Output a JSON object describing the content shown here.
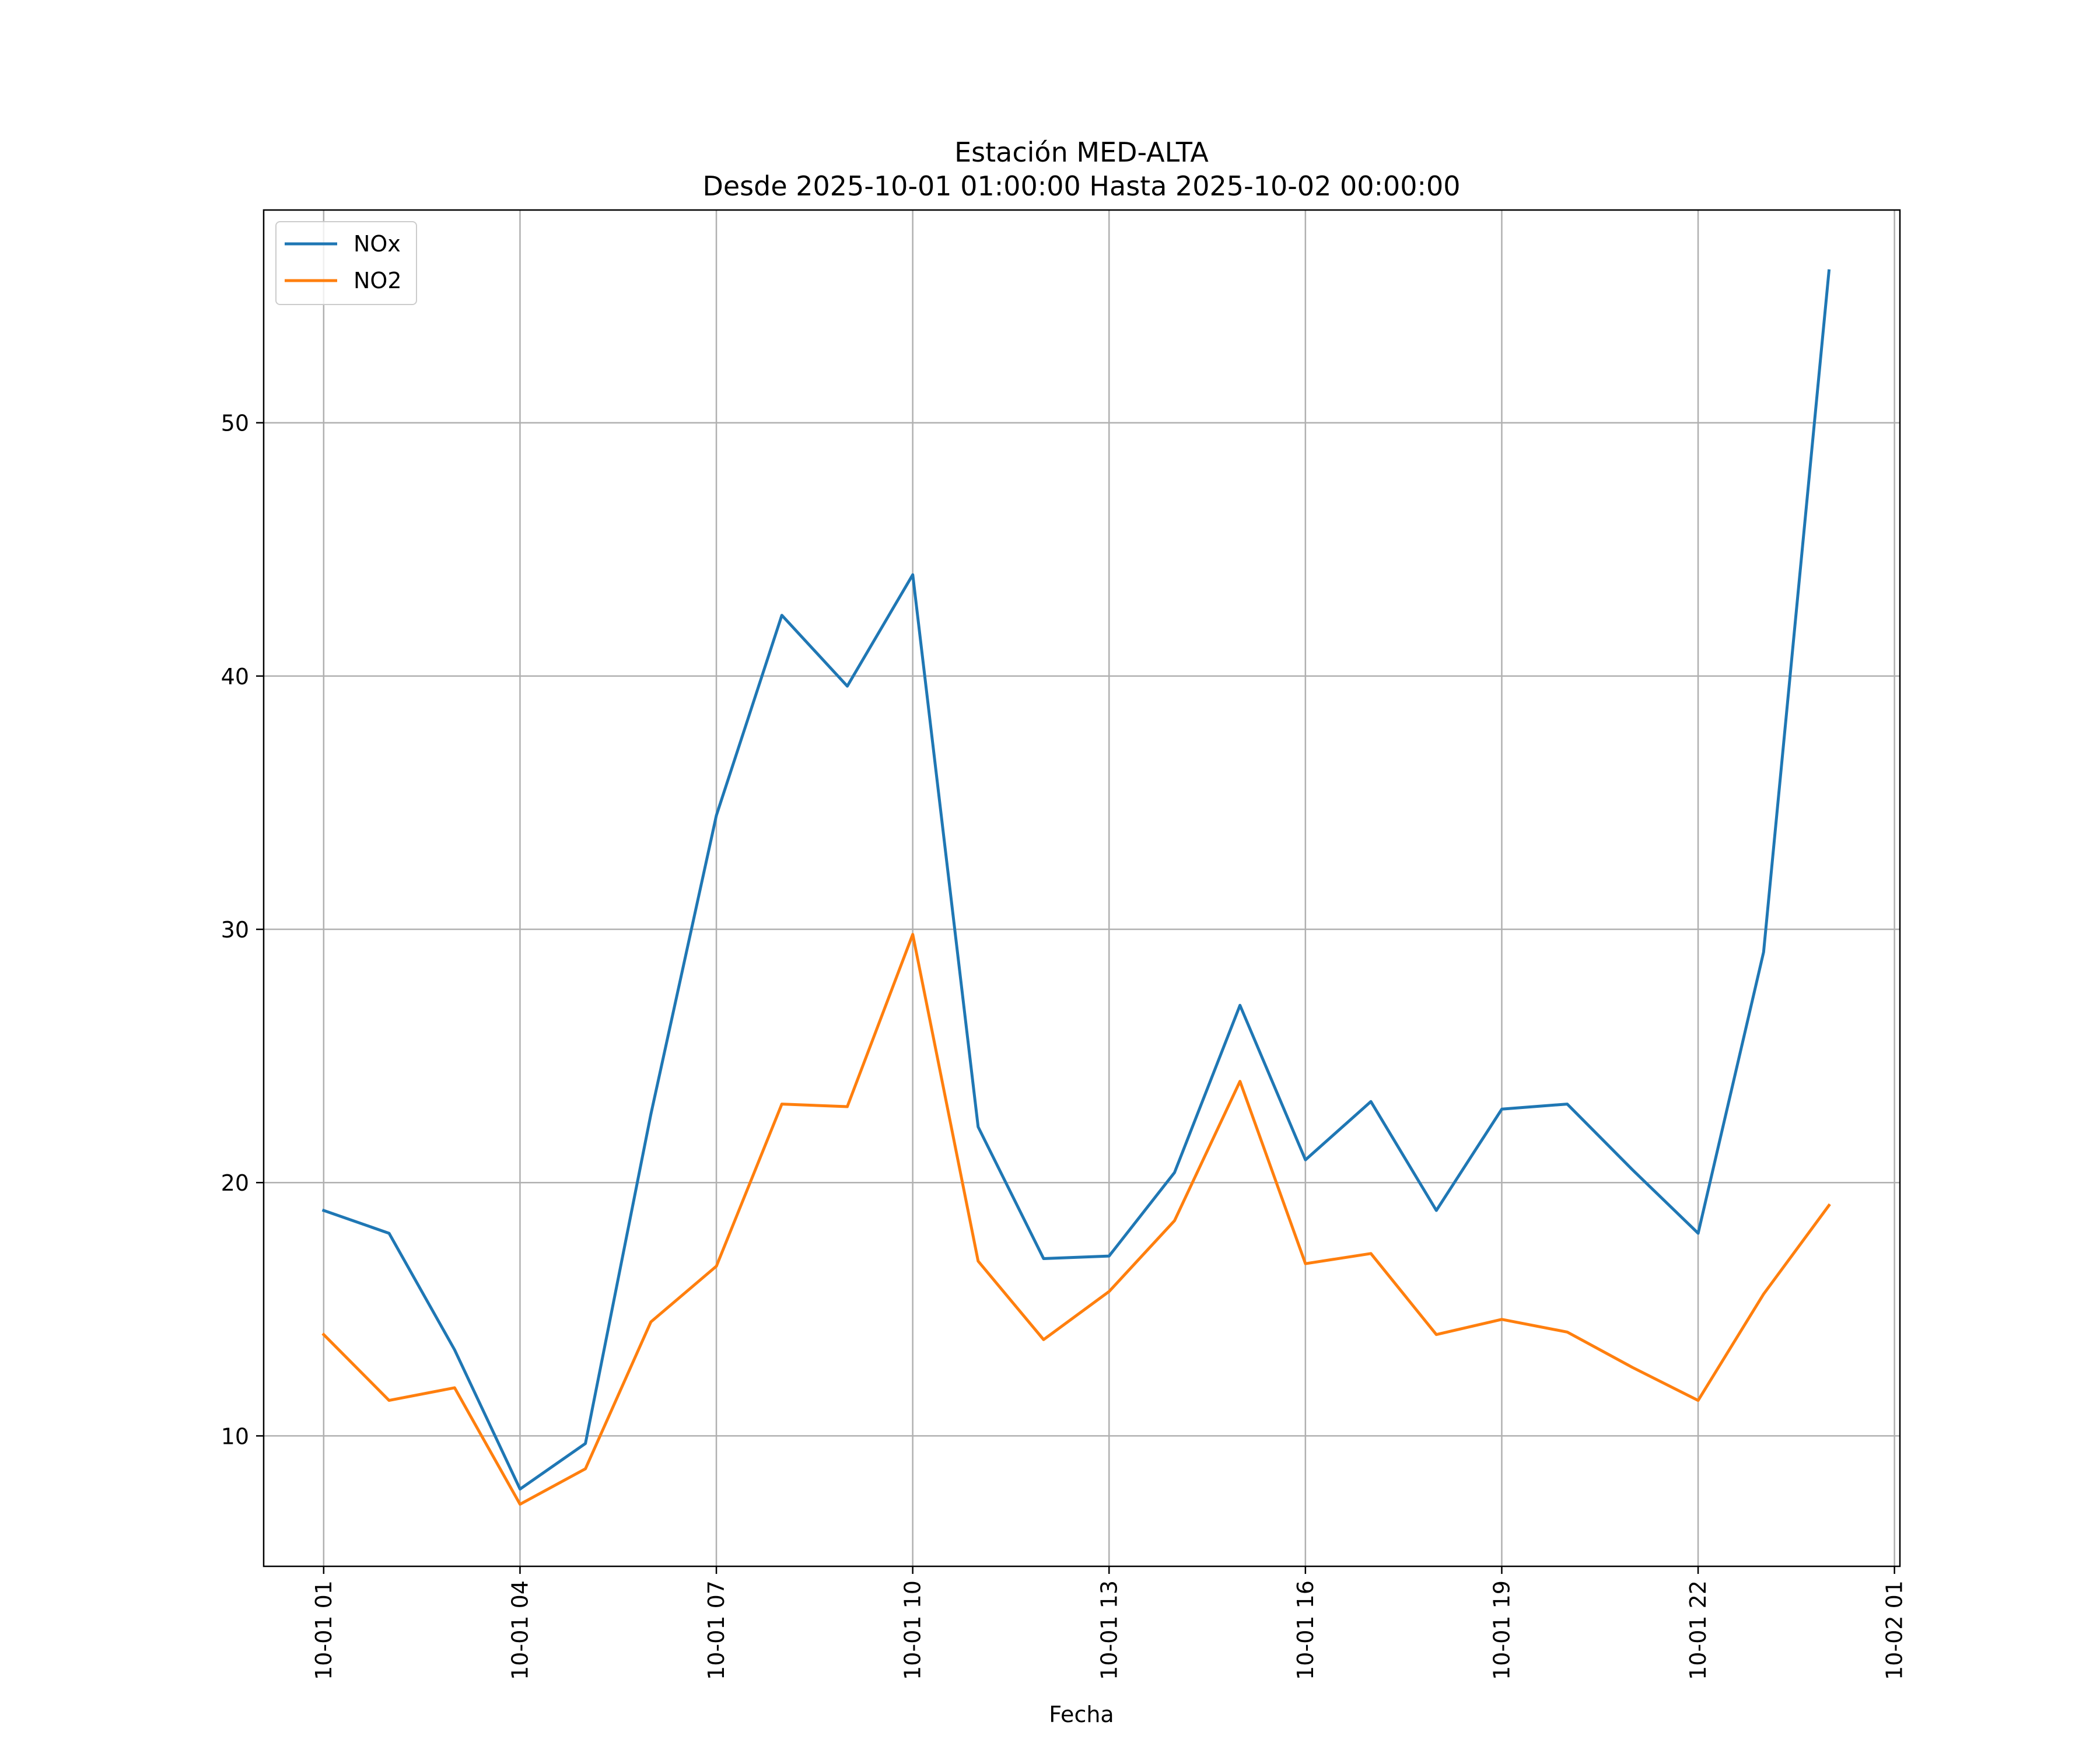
{
  "chart_data": {
    "type": "line",
    "title_line1": "Estación MED-ALTA",
    "title_line2": "Desde 2025-10-01 01:00:00 Hasta 2025-10-02 00:00:00",
    "xlabel": "Fecha",
    "ylabel": "",
    "x": [
      "2025-10-01 01:00",
      "2025-10-01 02:00",
      "2025-10-01 03:00",
      "2025-10-01 04:00",
      "2025-10-01 05:00",
      "2025-10-01 06:00",
      "2025-10-01 07:00",
      "2025-10-01 08:00",
      "2025-10-01 09:00",
      "2025-10-01 10:00",
      "2025-10-01 11:00",
      "2025-10-01 12:00",
      "2025-10-01 13:00",
      "2025-10-01 14:00",
      "2025-10-01 15:00",
      "2025-10-01 16:00",
      "2025-10-01 17:00",
      "2025-10-01 18:00",
      "2025-10-01 19:00",
      "2025-10-01 20:00",
      "2025-10-01 21:00",
      "2025-10-01 22:00",
      "2025-10-01 23:00",
      "2025-10-02 00:00"
    ],
    "xlim": [
      "2025-10-01 00:05",
      "2025-10-02 01:05"
    ],
    "x_tick_values": [
      "2025-10-01 01:00",
      "2025-10-01 04:00",
      "2025-10-01 07:00",
      "2025-10-01 10:00",
      "2025-10-01 13:00",
      "2025-10-01 16:00",
      "2025-10-01 19:00",
      "2025-10-01 22:00",
      "2025-10-02 01:00"
    ],
    "x_tick_labels": [
      "10-01 01",
      "10-01 04",
      "10-01 07",
      "10-01 10",
      "10-01 13",
      "10-01 16",
      "10-01 19",
      "10-01 22",
      "10-02 01"
    ],
    "ylim": [
      4.85,
      58.4
    ],
    "y_ticks": [
      10,
      20,
      30,
      40,
      50
    ],
    "y_tick_labels": [
      "10",
      "20",
      "30",
      "40",
      "50"
    ],
    "grid": true,
    "legend_position": "top-left",
    "series": [
      {
        "name": "NOx",
        "color": "#1f77b4",
        "values": [
          18.9,
          18.0,
          13.4,
          7.9,
          9.7,
          22.7,
          34.5,
          42.4,
          39.6,
          44.0,
          22.2,
          17.0,
          17.1,
          20.4,
          27.0,
          20.9,
          23.2,
          18.9,
          22.9,
          23.1,
          20.5,
          18.0,
          29.1,
          56.0
        ]
      },
      {
        "name": "NO2",
        "color": "#ff7f0e",
        "values": [
          14.0,
          11.4,
          11.9,
          7.3,
          8.7,
          14.5,
          16.7,
          23.1,
          23.0,
          29.8,
          16.9,
          13.8,
          15.7,
          18.5,
          24.0,
          16.8,
          17.2,
          14.0,
          14.6,
          14.1,
          12.7,
          11.4,
          15.6,
          19.1
        ]
      }
    ]
  }
}
